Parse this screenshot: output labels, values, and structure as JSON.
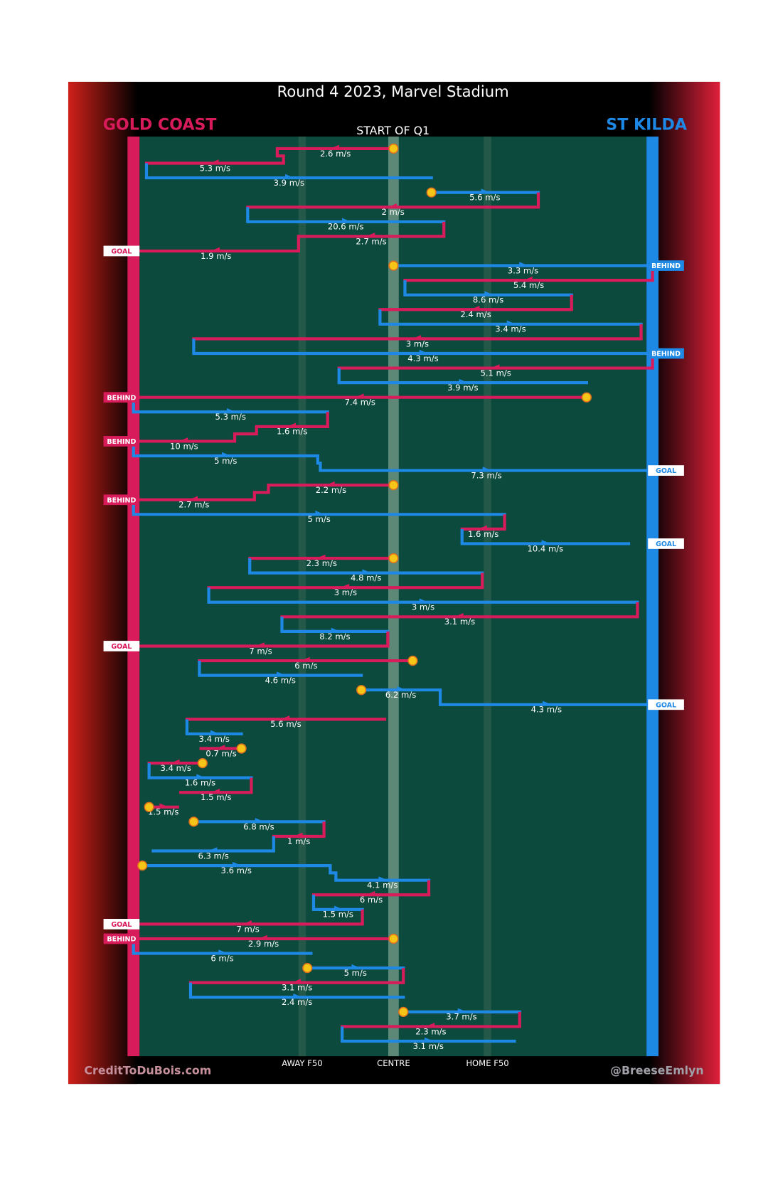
{
  "header": {
    "title": "Round 4 2023, Marvel Stadium",
    "subtitle": "START OF Q1"
  },
  "footer": {
    "left": "CreditToDuBois.com",
    "right": "@BreeseEmlyn"
  },
  "chart_data": {
    "type": "possession-chain",
    "xlim": [
      0,
      100
    ],
    "xticks": [
      {
        "value": 32.5,
        "label": "AWAY F50"
      },
      {
        "value": 50.1,
        "label": "CENTRE"
      },
      {
        "value": 68.2,
        "label": "HOME F50"
      }
    ],
    "series": [
      {
        "name": "GOLD COAST",
        "color": "#d81b5a"
      },
      {
        "name": "ST KILDA",
        "color": "#1e88e5"
      }
    ],
    "rows": [
      {
        "team": 0,
        "from": 50.1,
        "to": 27.7,
        "speed": 2.6,
        "label": "2.6 m/s",
        "start": true
      },
      {
        "team": 0,
        "from": 28.9,
        "to": 2.5,
        "speed": 5.3,
        "label": "5.3 m/s"
      },
      {
        "team": 1,
        "from": 2.5,
        "to": 57.4,
        "speed": 3.9,
        "label": "3.9 m/s"
      },
      {
        "team": 1,
        "from": 57.4,
        "to": 78.0,
        "speed": 5.6,
        "label": "5.6 m/s",
        "start": true
      },
      {
        "team": 0,
        "from": 78.0,
        "to": 22.0,
        "speed": 2,
        "label": "2 m/s"
      },
      {
        "team": 1,
        "from": 22.0,
        "to": 59.8,
        "speed": 20.6,
        "label": "20.6 m/s"
      },
      {
        "team": 0,
        "from": 59.8,
        "to": 31.8,
        "speed": 2.7,
        "label": "2.7 m/s"
      },
      {
        "team": 0,
        "from": 31.8,
        "to": 0,
        "speed": 1.9,
        "label": "1.9 m/s",
        "result": "GOAL"
      },
      {
        "team": 1,
        "from": 50.1,
        "to": 100,
        "speed": 3.3,
        "label": "3.3 m/s",
        "start": true,
        "result": "BEHIND"
      },
      {
        "team": 0,
        "from": 100,
        "to": 52.3,
        "speed": 5.4,
        "label": "5.4 m/s"
      },
      {
        "team": 1,
        "from": 52.3,
        "to": 84.4,
        "speed": 8.6,
        "label": "8.6 m/s"
      },
      {
        "team": 0,
        "from": 84.4,
        "to": 47.5,
        "speed": 2.4,
        "label": "2.4 m/s"
      },
      {
        "team": 1,
        "from": 47.5,
        "to": 97.8,
        "speed": 3.4,
        "label": "3.4 m/s"
      },
      {
        "team": 0,
        "from": 97.8,
        "to": 11.6,
        "speed": 3,
        "label": "3 m/s"
      },
      {
        "team": 1,
        "from": 11.6,
        "to": 100,
        "speed": 4.3,
        "label": "4.3 m/s",
        "result": "BEHIND"
      },
      {
        "team": 0,
        "from": 100,
        "to": 39.6,
        "speed": 5.1,
        "label": "5.1 m/s"
      },
      {
        "team": 1,
        "from": 39.6,
        "to": 87.3,
        "speed": 3.9,
        "label": "3.9 m/s"
      },
      {
        "team": 0,
        "from": 87.3,
        "to": 0,
        "speed": 7.4,
        "label": "7.4 m/s",
        "start": true,
        "result": "BEHIND"
      },
      {
        "team": 1,
        "from": 0,
        "to": 37.4,
        "speed": 5.3,
        "label": "5.3 m/s"
      },
      {
        "team": 0,
        "from": 37.4,
        "to": 23.7,
        "speed": 1.6,
        "label": "1.6 m/s"
      },
      {
        "team": 0,
        "from": 19.5,
        "to": 0,
        "speed": 10,
        "label": "10 m/s",
        "result": "BEHIND"
      },
      {
        "team": 1,
        "from": 0,
        "to": 35.5,
        "speed": 5,
        "label": "5 m/s"
      },
      {
        "team": 1,
        "from": 36.0,
        "to": 100,
        "speed": 7.3,
        "label": "7.3 m/s",
        "result": "GOAL"
      },
      {
        "team": 0,
        "from": 50.1,
        "to": 26.0,
        "speed": 2.2,
        "label": "2.2 m/s",
        "start": true
      },
      {
        "team": 0,
        "from": 23.3,
        "to": 0,
        "speed": 2.7,
        "label": "2.7 m/s",
        "result": "BEHIND"
      },
      {
        "team": 1,
        "from": 0,
        "to": 71.5,
        "speed": 5,
        "label": "5 m/s"
      },
      {
        "team": 0,
        "from": 71.5,
        "to": 63.3,
        "speed": 1.6,
        "label": "1.6 m/s"
      },
      {
        "team": 1,
        "from": 63.3,
        "to": 95.4,
        "speed": 10.4,
        "label": "10.4 m/s",
        "result": "GOAL"
      },
      {
        "team": 0,
        "from": 50.1,
        "to": 22.4,
        "speed": 2.3,
        "label": "2.3 m/s",
        "start": true
      },
      {
        "team": 1,
        "from": 22.4,
        "to": 67.2,
        "speed": 4.8,
        "label": "4.8 m/s"
      },
      {
        "team": 0,
        "from": 67.2,
        "to": 14.5,
        "speed": 3,
        "label": "3 m/s"
      },
      {
        "team": 1,
        "from": 14.5,
        "to": 97.1,
        "speed": 3,
        "label": "3 m/s"
      },
      {
        "team": 0,
        "from": 97.1,
        "to": 28.6,
        "speed": 3.1,
        "label": "3.1 m/s"
      },
      {
        "team": 1,
        "from": 28.6,
        "to": 49.0,
        "speed": 8.2,
        "label": "8.2 m/s"
      },
      {
        "team": 0,
        "from": 49.0,
        "to": 0,
        "speed": 7,
        "label": "7 m/s",
        "result": "GOAL"
      },
      {
        "team": 0,
        "from": 53.8,
        "to": 12.7,
        "speed": 6,
        "label": "6 m/s",
        "start": true
      },
      {
        "team": 1,
        "from": 12.7,
        "to": 43.9,
        "speed": 4.6,
        "label": "4.6 m/s"
      },
      {
        "team": 1,
        "from": 43.9,
        "to": 59.1,
        "speed": 6.2,
        "label": "6.2 m/s",
        "start": true
      },
      {
        "team": 1,
        "from": 59.1,
        "to": 100,
        "speed": 4.3,
        "label": "4.3 m/s",
        "result": "GOAL"
      },
      {
        "team": 0,
        "from": 48.4,
        "to": 10.3,
        "speed": 5.6,
        "label": "5.6 m/s"
      },
      {
        "team": 1,
        "from": 10.3,
        "to": 20.8,
        "speed": 3.4,
        "label": "3.4 m/s"
      },
      {
        "team": 0,
        "from": 20.8,
        "to": 13.0,
        "speed": 0.7,
        "label": "0.7 m/s",
        "start": true
      },
      {
        "team": 0,
        "from": 13.3,
        "to": 3.0,
        "speed": 3.4,
        "label": "3.4 m/s",
        "start": true
      },
      {
        "team": 1,
        "from": 3.0,
        "to": 22.7,
        "speed": 1.6,
        "label": "1.6 m/s"
      },
      {
        "team": 0,
        "from": 22.7,
        "to": 9.1,
        "speed": 1.5,
        "label": "1.5 m/s"
      },
      {
        "team": 0,
        "from": 3.0,
        "to": 8.5,
        "speed": 1.5,
        "label": "1.5 m/s",
        "start": true
      },
      {
        "team": 1,
        "from": 11.6,
        "to": 36.7,
        "speed": 6.8,
        "label": "6.8 m/s",
        "start": true
      },
      {
        "team": 0,
        "from": 36.7,
        "to": 27.0,
        "speed": 1,
        "label": "1 m/s"
      },
      {
        "team": 1,
        "from": 27.0,
        "to": 3.8,
        "speed": 6.3,
        "label": "6.3 m/s"
      },
      {
        "team": 1,
        "from": 1.7,
        "to": 37.9,
        "speed": 3.6,
        "label": "3.6 m/s",
        "start": true
      },
      {
        "team": 1,
        "from": 39.0,
        "to": 56.9,
        "speed": 4.1,
        "label": "4.1 m/s"
      },
      {
        "team": 0,
        "from": 56.9,
        "to": 34.7,
        "speed": 6,
        "label": "6 m/s"
      },
      {
        "team": 1,
        "from": 34.7,
        "to": 44.1,
        "speed": 1.5,
        "label": "1.5 m/s"
      },
      {
        "team": 0,
        "from": 44.1,
        "to": 0,
        "speed": 7,
        "label": "7 m/s",
        "result": "GOAL"
      },
      {
        "team": 0,
        "from": 50.1,
        "to": 0,
        "speed": 2.9,
        "label": "2.9 m/s",
        "start": true,
        "result": "BEHIND"
      },
      {
        "team": 1,
        "from": 0,
        "to": 34.2,
        "speed": 6,
        "label": "6 m/s"
      },
      {
        "team": 1,
        "from": 33.5,
        "to": 52.0,
        "speed": 5,
        "label": "5 m/s",
        "start": true
      },
      {
        "team": 0,
        "from": 52.0,
        "to": 11.0,
        "speed": 3.1,
        "label": "3.1 m/s"
      },
      {
        "team": 1,
        "from": 11.0,
        "to": 52.0,
        "speed": 2.4,
        "label": "2.4 m/s"
      },
      {
        "team": 1,
        "from": 52.0,
        "to": 74.4,
        "speed": 3.7,
        "label": "3.7 m/s",
        "start": true
      },
      {
        "team": 0,
        "from": 74.4,
        "to": 40.2,
        "speed": 2.3,
        "label": "2.3 m/s"
      },
      {
        "team": 1,
        "from": 40.2,
        "to": 73.4,
        "speed": 3.1,
        "label": "3.1 m/s"
      }
    ]
  }
}
